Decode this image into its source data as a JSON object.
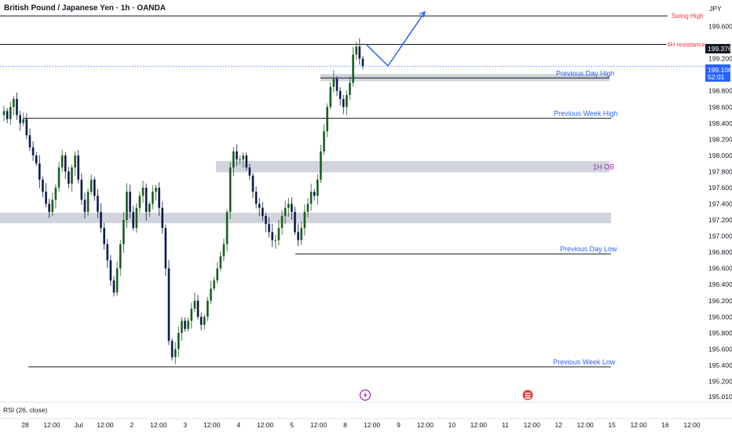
{
  "header": {
    "title": "British Pound / Japanese Yen · 1h · OANDA"
  },
  "price_axis": {
    "currency": "JPY",
    "ticks": [
      "199.600",
      "199.200",
      "198.800",
      "198.600",
      "198.400",
      "198.200",
      "198.000",
      "197.800",
      "197.600",
      "197.400",
      "197.200",
      "197.000",
      "196.800",
      "196.600",
      "196.400",
      "196.200",
      "196.000",
      "195.800",
      "195.600",
      "195.400",
      "195.200",
      "195.010"
    ],
    "resistance_badge": "199.376",
    "current_badge_price": "199.106",
    "current_badge_timer": "52:01"
  },
  "time_axis": {
    "labels": [
      "28",
      "12:00",
      "Jul",
      "12:00",
      "2",
      "12:00",
      "3",
      "12:00",
      "4",
      "12:00",
      "5",
      "12:00",
      "8",
      "12:00",
      "9",
      "12:00",
      "10",
      "12:00",
      "11",
      "12:00",
      "12",
      "12:00",
      "15",
      "12:00",
      "16",
      "12:00"
    ]
  },
  "rsi_pane": {
    "label": "RSI (26, close)"
  },
  "colors": {
    "up_candle": "#1b5e20",
    "down_candle": "#0d1b4c",
    "zone": "#d1d4dc",
    "level_blue": "#2962ff",
    "level_red": "#f23645",
    "level_purple": "#9c27b0",
    "event_purple": "#9c27b0",
    "event_red": "#e53935"
  },
  "chart_data": {
    "type": "candlestick",
    "title": "British Pound / Japanese Yen · 1h · OANDA",
    "symbol": "GBPJPY",
    "interval": "1h",
    "y_axis": {
      "min": 195.01,
      "max": 199.8,
      "unit": "JPY"
    },
    "x_axis": {
      "from": "2024-06-28",
      "to": "2024-07-16"
    },
    "current_price": 199.106,
    "levels": [
      {
        "label": "Swing High",
        "price": 199.73
      },
      {
        "label": "4H resistance",
        "price": 199.376
      },
      {
        "label": "Previous Day High",
        "price": 198.96
      },
      {
        "label": "Previous Week High",
        "price": 198.46
      },
      {
        "label": "Previous Day Low",
        "price": 196.78
      },
      {
        "label": "Previous Week  Low",
        "price": 195.38
      }
    ],
    "zones": [
      {
        "label": "Previous Day High",
        "from": 198.92,
        "to": 199.01
      },
      {
        "label": "1H OB",
        "from": 197.79,
        "to": 197.93
      },
      {
        "label": "",
        "from": 197.16,
        "to": 197.29
      }
    ],
    "projection": [
      199.37,
      199.11,
      199.78
    ],
    "price_path": [
      198.5,
      198.55,
      198.45,
      198.6,
      198.7,
      198.5,
      198.4,
      198.45,
      198.25,
      198.1,
      198.0,
      197.9,
      197.7,
      197.55,
      197.4,
      197.3,
      197.45,
      197.6,
      197.85,
      198.0,
      197.8,
      197.65,
      197.85,
      198.0,
      197.7,
      197.45,
      197.3,
      197.55,
      197.7,
      197.5,
      197.3,
      197.1,
      196.9,
      196.7,
      196.45,
      196.3,
      196.6,
      196.9,
      197.2,
      197.55,
      197.3,
      197.1,
      197.35,
      197.5,
      197.6,
      197.3,
      197.4,
      197.55,
      197.6,
      197.35,
      197.1,
      196.6,
      195.7,
      195.5,
      195.6,
      195.8,
      195.95,
      195.85,
      195.95,
      196.1,
      196.2,
      196.0,
      195.9,
      196.0,
      196.2,
      196.35,
      196.45,
      196.6,
      196.75,
      196.9,
      197.3,
      197.85,
      198.05,
      197.95,
      197.95,
      198.0,
      197.85,
      197.75,
      197.55,
      197.4,
      197.35,
      197.25,
      197.15,
      197.05,
      196.95,
      196.95,
      197.1,
      197.25,
      197.35,
      197.4,
      197.3,
      197.05,
      196.95,
      197.1,
      197.3,
      197.4,
      197.55,
      197.5,
      197.7,
      198.05,
      198.3,
      198.6,
      198.85,
      198.95,
      198.8,
      198.7,
      198.6,
      198.75,
      198.9,
      199.25,
      199.35,
      199.2,
      199.11
    ],
    "events": [
      {
        "type": "lightning"
      },
      {
        "type": "flag"
      }
    ]
  }
}
